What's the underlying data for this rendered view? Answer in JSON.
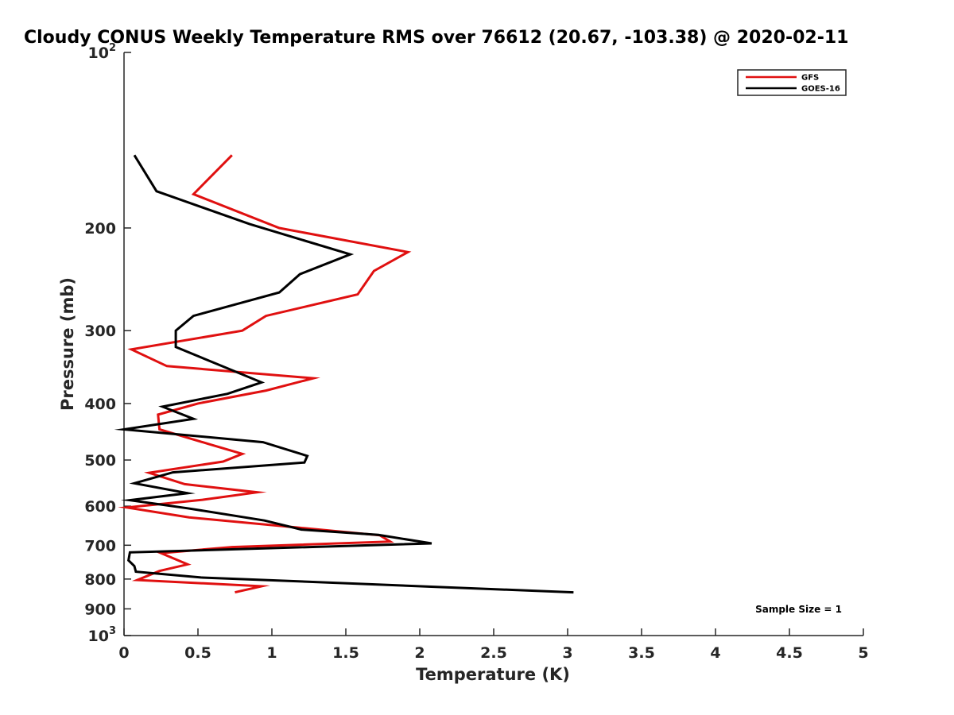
{
  "chart_data": {
    "type": "line",
    "title": "Cloudy CONUS Weekly Temperature RMS over 76612 (20.67, -103.38) @ 2020-02-11",
    "xlabel": "Temperature (K)",
    "ylabel": "Pressure (mb)",
    "xlim": [
      0,
      5
    ],
    "ylim": [
      100,
      1000
    ],
    "y_scale": "log",
    "y_reversed": true,
    "x_ticks": [
      "0",
      "0.5",
      "1",
      "1.5",
      "2",
      "2.5",
      "3",
      "3.5",
      "4",
      "4.5",
      "5"
    ],
    "y_tick_values": [
      200,
      300,
      400,
      500,
      600,
      700,
      800,
      900
    ],
    "y_tick_labels": [
      "200",
      "300",
      "400",
      "500",
      "600",
      "700",
      "800",
      "900"
    ],
    "y_top_label": {
      "base": "10",
      "exp": "2"
    },
    "y_bottom_label": {
      "base": "10",
      "exp": "3"
    },
    "grid": false,
    "legend_position": "top-right",
    "annotation": "Sample Size = 1",
    "series": [
      {
        "name": "GFS",
        "color": "#e01010",
        "points": [
          [
            0.73,
            150
          ],
          [
            0.47,
            175
          ],
          [
            1.05,
            200
          ],
          [
            1.92,
            220
          ],
          [
            1.69,
            237
          ],
          [
            1.58,
            260
          ],
          [
            0.96,
            283
          ],
          [
            0.8,
            300
          ],
          [
            0.05,
            323
          ],
          [
            0.29,
            345
          ],
          [
            1.28,
            362
          ],
          [
            0.96,
            380
          ],
          [
            0.5,
            400
          ],
          [
            0.23,
            418
          ],
          [
            0.24,
            443
          ],
          [
            0.58,
            470
          ],
          [
            0.8,
            488
          ],
          [
            0.67,
            503
          ],
          [
            0.17,
            526
          ],
          [
            0.41,
            550
          ],
          [
            0.9,
            568
          ],
          [
            0.53,
            585
          ],
          [
            0.02,
            603
          ],
          [
            0.44,
            627
          ],
          [
            1.73,
            673
          ],
          [
            1.8,
            690
          ],
          [
            0.73,
            705
          ],
          [
            0.25,
            722
          ],
          [
            0.43,
            755
          ],
          [
            0.24,
            775
          ],
          [
            0.09,
            803
          ],
          [
            0.93,
            823
          ],
          [
            0.75,
            843
          ]
        ]
      },
      {
        "name": "GOES-16",
        "color": "#000000",
        "points": [
          [
            0.07,
            150
          ],
          [
            0.22,
            173
          ],
          [
            0.85,
            197
          ],
          [
            1.53,
            222
          ],
          [
            1.19,
            240
          ],
          [
            1.05,
            258
          ],
          [
            0.47,
            283
          ],
          [
            0.35,
            300
          ],
          [
            0.35,
            320
          ],
          [
            0.93,
            368
          ],
          [
            0.7,
            385
          ],
          [
            0.26,
            405
          ],
          [
            0.47,
            425
          ],
          [
            0.0,
            443
          ],
          [
            0.94,
            466
          ],
          [
            1.24,
            492
          ],
          [
            1.22,
            505
          ],
          [
            0.33,
            525
          ],
          [
            0.07,
            548
          ],
          [
            0.43,
            570
          ],
          [
            0.04,
            586
          ],
          [
            0.43,
            605
          ],
          [
            0.95,
            635
          ],
          [
            1.2,
            658
          ],
          [
            1.72,
            672
          ],
          [
            2.08,
            695
          ],
          [
            0.04,
            720
          ],
          [
            0.03,
            743
          ],
          [
            0.07,
            760
          ],
          [
            0.08,
            777
          ],
          [
            0.52,
            795
          ],
          [
            3.04,
            843
          ]
        ]
      }
    ]
  }
}
